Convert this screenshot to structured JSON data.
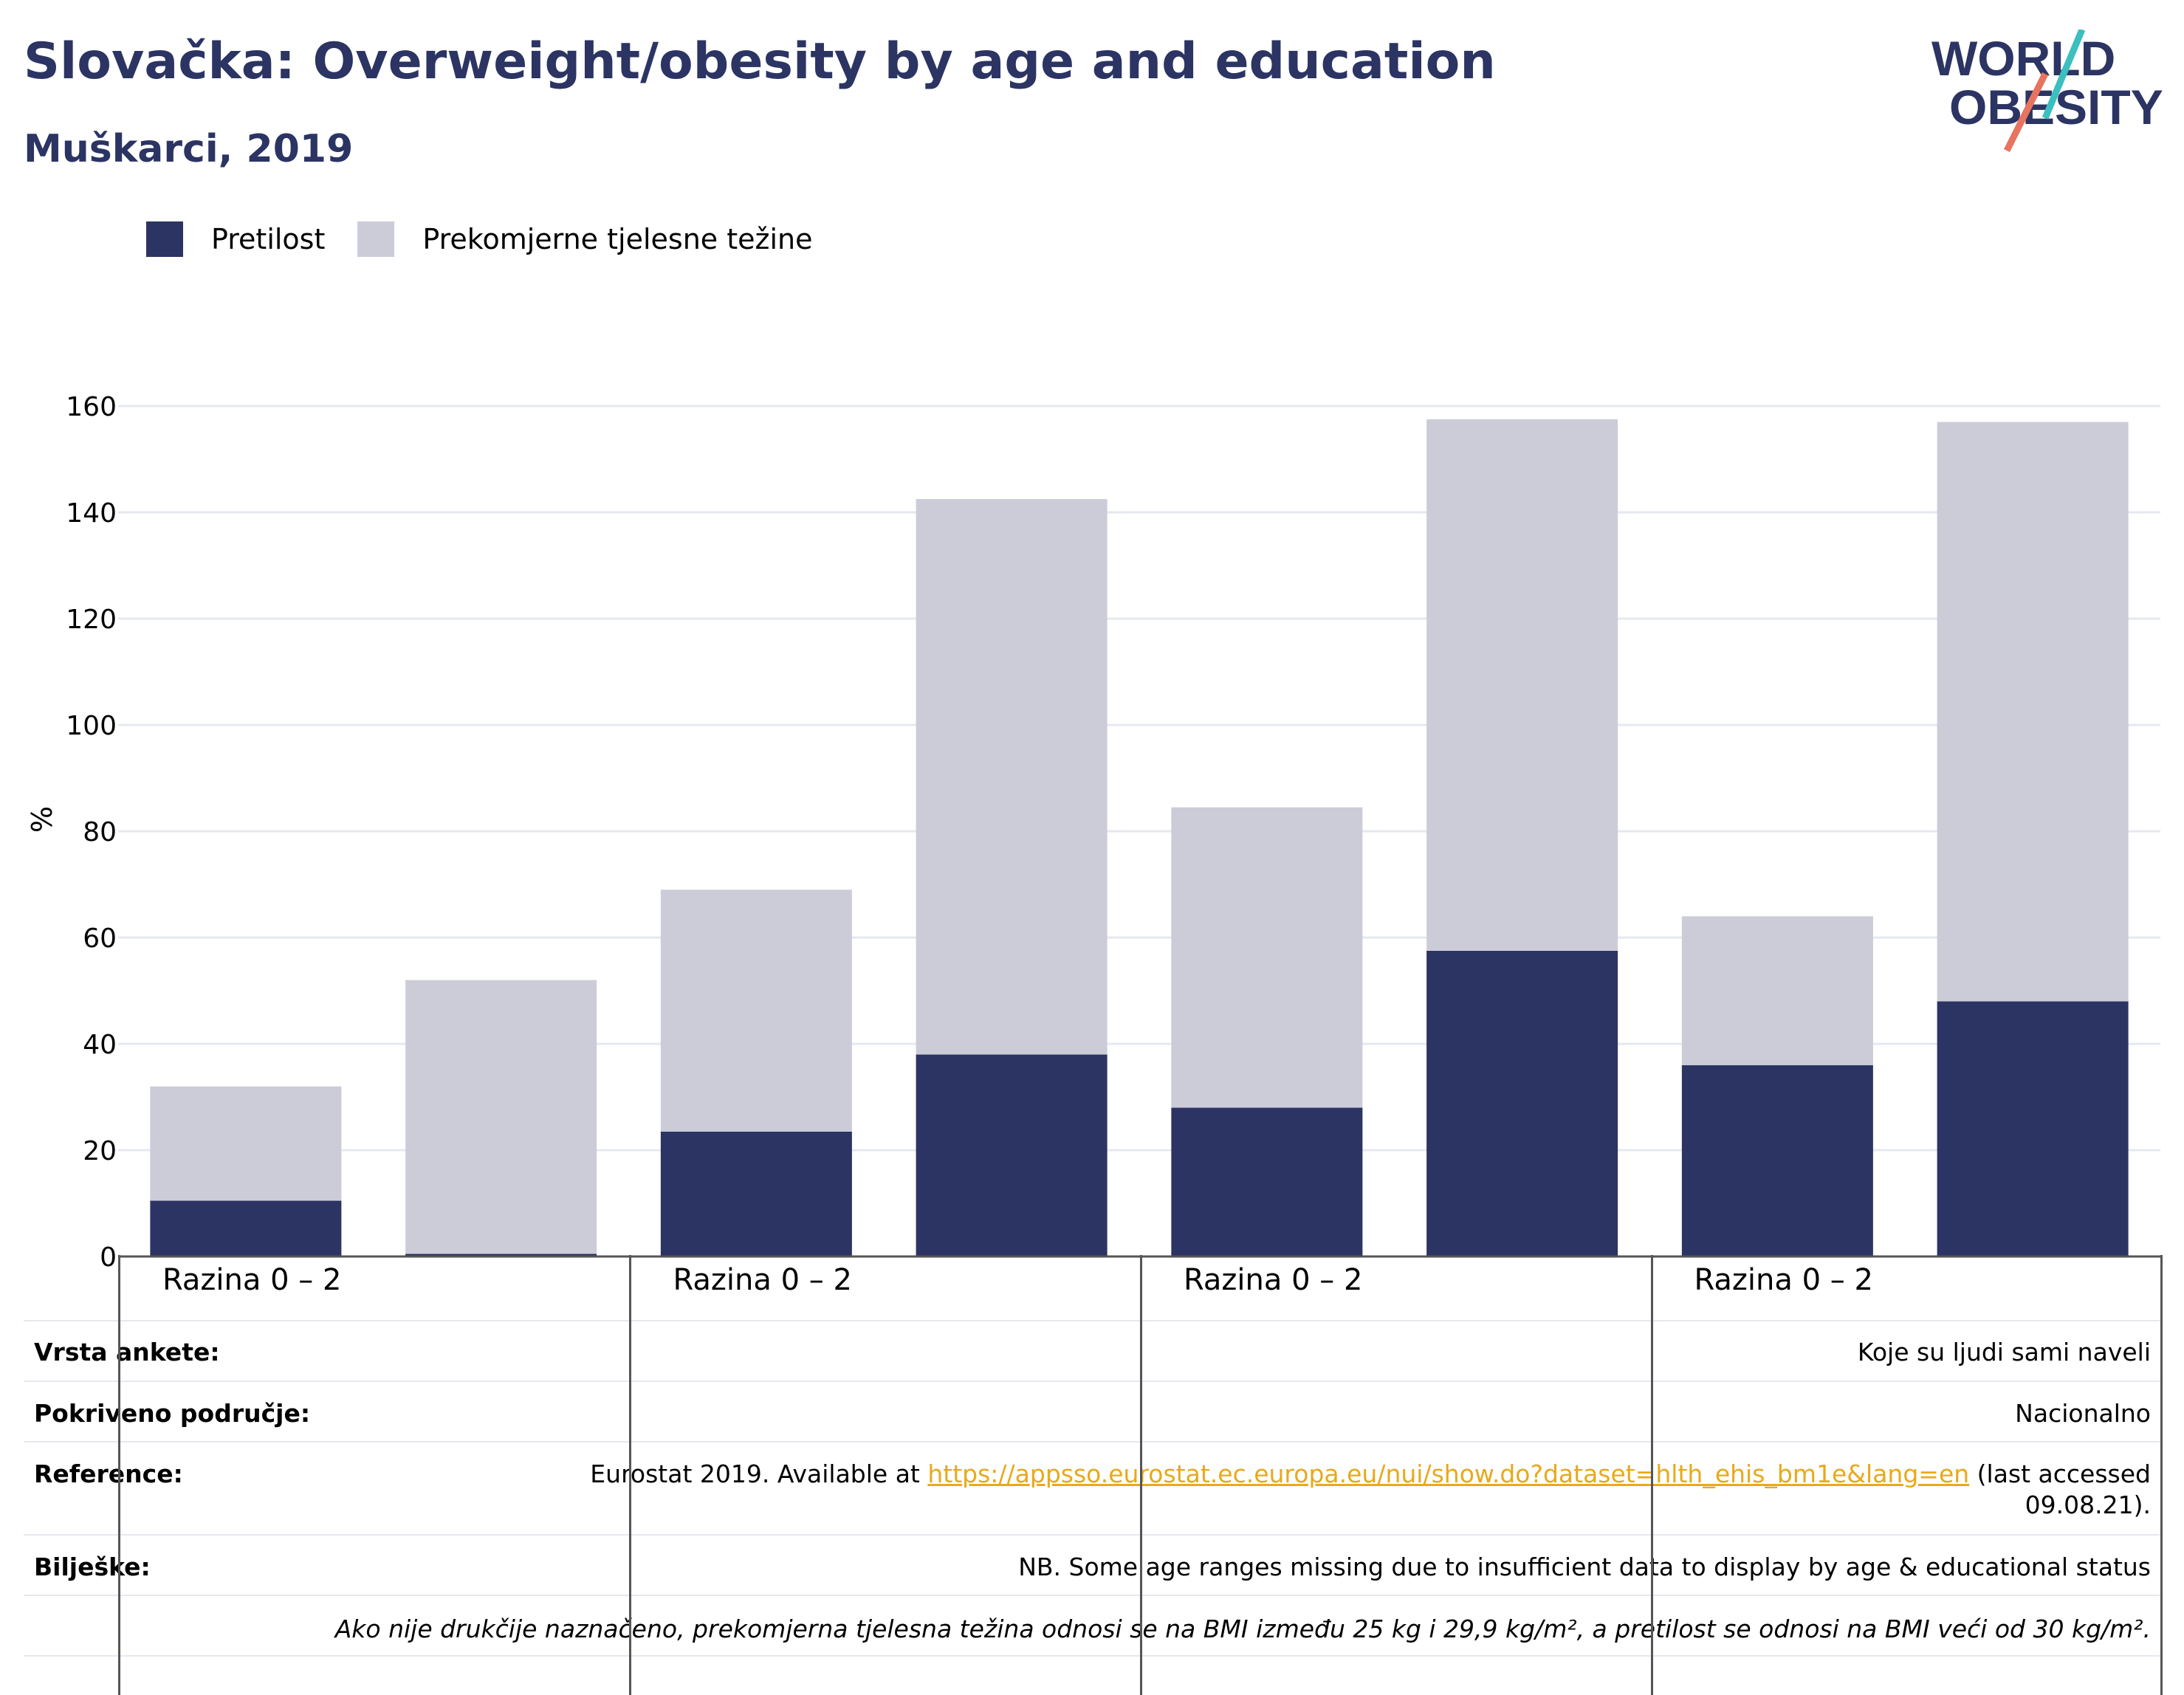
{
  "title": "Slovačka: Overweight/obesity by age and education",
  "subtitle": "Muškarci, 2019",
  "logo": {
    "line1": "WORLD",
    "line2": "OBESITY"
  },
  "colors": {
    "obesity": "#2b3463",
    "overweight": "#cbccd8",
    "accent_teal": "#3bbfbf",
    "accent_coral": "#e8735f",
    "link": "#e8a91a"
  },
  "legend": [
    {
      "label": "Pretilost",
      "color": "#2b3463"
    },
    {
      "label": "Prekomjerne tjelesne težine",
      "color": "#cbccd8"
    }
  ],
  "chart_data": {
    "type": "bar",
    "stacked": true,
    "ylabel": "%",
    "ylim": [
      0,
      160
    ],
    "yticks": [
      0,
      20,
      40,
      60,
      80,
      100,
      120,
      140,
      160
    ],
    "grid": true,
    "group_labels": [
      "Razina 0 – 2",
      "Razina 0 – 2",
      "Razina 0 – 2",
      "Razina 0 – 2"
    ],
    "series": [
      {
        "name": "Pretilost",
        "values": [
          10.5,
          0.5,
          23.5,
          38,
          28,
          57.5,
          36,
          48
        ]
      },
      {
        "name": "Prekomjerne tjelesne težine",
        "values": [
          21.5,
          51.5,
          45.5,
          104.5,
          56.5,
          100,
          28,
          109
        ]
      }
    ]
  },
  "info": {
    "survey_type": {
      "label": "Vrsta ankete:",
      "value": "Koje su ljudi sami naveli"
    },
    "coverage": {
      "label": "Pokriveno područje:",
      "value": "Nacionalno"
    },
    "reference": {
      "label": "Reference:",
      "prefix": "Eurostat 2019. Available at ",
      "link": "https://appsso.eurostat.ec.europa.eu/nui/show.do?dataset=hlth_ehis_bm1e&lang=en",
      "suffix": " (last accessed",
      "suffix2": "09.08.21)."
    },
    "notes": {
      "label": "Bilješke:",
      "value": "NB. Some age ranges missing due to insufficient data to display by age & educational status"
    },
    "footnote": "Ako nije drukčije naznačeno, prekomjerna tjelesna težina odnosi se na BMI između 25 kg i 29,9 kg/m², a pretilost se odnosi na BMI veći od 30 kg/m²."
  }
}
